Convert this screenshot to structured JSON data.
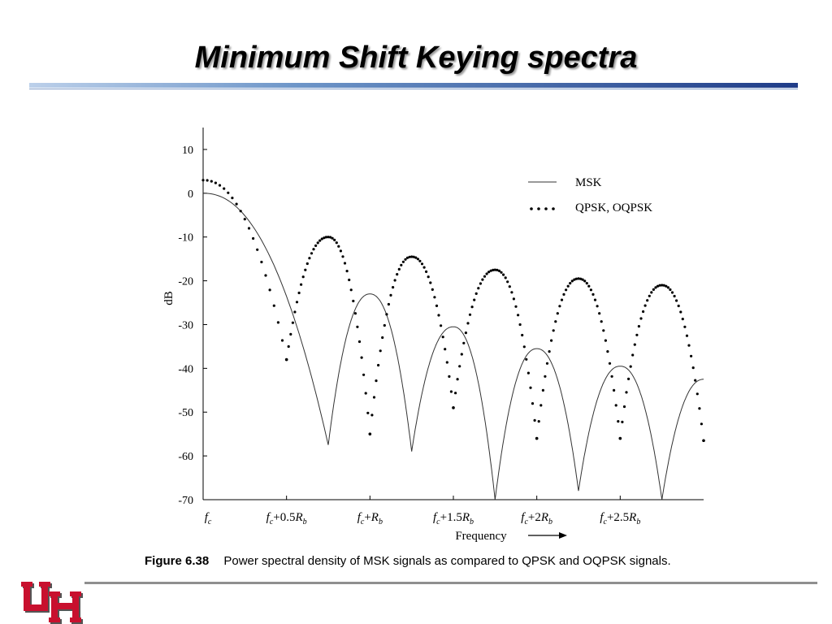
{
  "slide": {
    "title": "Minimum Shift Keying spectra",
    "caption_label": "Figure 6.38",
    "caption_text": "Power spectral density of MSK signals as compared to QPSK and OQPSK signals."
  },
  "logo": {
    "icon": "university-of-houston-uh-logo-icon",
    "color": "#c8102e"
  },
  "chart_data": {
    "type": "line",
    "title": "",
    "xlabel": "Frequency",
    "ylabel": "dB",
    "ylim": [
      -70,
      15
    ],
    "xlim": [
      0,
      3
    ],
    "yticks": [
      10,
      0,
      -10,
      -20,
      -30,
      -40,
      -50,
      -60,
      -70
    ],
    "xticks": [
      {
        "x": 0,
        "base": "f",
        "sub": "c",
        "suffix": ""
      },
      {
        "x": 0.5,
        "base": "f",
        "sub": "c",
        "suffix": "+0.5",
        "rb": "R",
        "rbsub": "b"
      },
      {
        "x": 1.0,
        "base": "f",
        "sub": "c",
        "suffix": "+",
        "rb": "R",
        "rbsub": "b"
      },
      {
        "x": 1.5,
        "base": "f",
        "sub": "c",
        "suffix": "+1.5",
        "rb": "R",
        "rbsub": "b"
      },
      {
        "x": 2.0,
        "base": "f",
        "sub": "c",
        "suffix": "+2",
        "rb": "R",
        "rbsub": "b"
      },
      {
        "x": 2.5,
        "base": "f",
        "sub": "c",
        "suffix": "+2.5",
        "rb": "R",
        "rbsub": "b"
      }
    ],
    "grid": false,
    "legend_position": "top-right",
    "series": [
      {
        "name": "MSK",
        "style": "solid-line",
        "color": "#333333",
        "x": [
          0,
          0.3,
          0.75,
          0.85,
          1.0,
          1.25,
          1.5,
          1.75,
          2.0,
          2.25,
          2.5,
          2.75,
          3.0
        ],
        "values": [
          0,
          -5.5,
          -57.5,
          -30,
          -23,
          -59,
          -30,
          -70,
          -35,
          -68,
          -39,
          -70,
          -42.5
        ],
        "peaks_x": [
          0,
          1.0,
          1.5,
          2.0,
          2.5,
          3.0
        ],
        "peaks_y": [
          0,
          -23,
          -30.5,
          -35.5,
          -39.5,
          -42.5
        ],
        "nulls_x": [
          0.75,
          1.25,
          1.75,
          2.25,
          2.75
        ],
        "nulls_y": [
          -57.5,
          -59,
          -70,
          -68,
          -70
        ]
      },
      {
        "name": "QPSK, OQPSK",
        "style": "dotted",
        "color": "#000000",
        "x": [
          0,
          0.25,
          0.5,
          0.75,
          1.0,
          1.25,
          1.5,
          1.75,
          2.0,
          2.25,
          2.5,
          2.75,
          3.0
        ],
        "values": [
          3,
          -10,
          -38,
          -10,
          -55,
          -14.5,
          -49,
          -17.5,
          -56,
          -19.5,
          -56,
          -21,
          -56.5
        ],
        "peaks_x": [
          0,
          0.75,
          1.25,
          1.75,
          2.25,
          2.75
        ],
        "peaks_y": [
          3,
          -10,
          -14.5,
          -17.5,
          -19.5,
          -21
        ],
        "nulls_x": [
          0.5,
          1.0,
          1.5,
          2.0,
          2.5,
          3.0
        ],
        "nulls_y": [
          -38,
          -55,
          -49,
          -56,
          -56,
          -56.5
        ]
      }
    ]
  }
}
